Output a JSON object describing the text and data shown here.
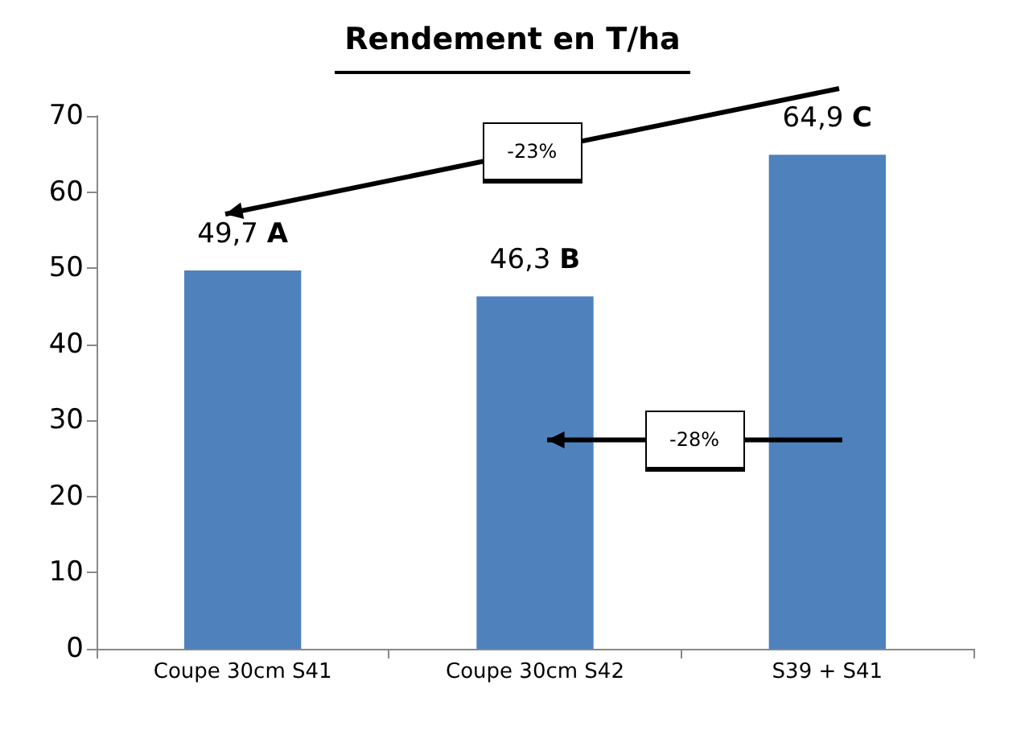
{
  "chart_data": {
    "type": "bar",
    "title": "Rendement en T/ha",
    "categories": [
      "Coupe 30cm S41",
      "Coupe 30cm S42",
      "S39 + S41"
    ],
    "values": [
      49.7,
      46.3,
      64.9
    ],
    "color": "#4f81bd",
    "value_labels": [
      "49,7 A",
      "46,3 B",
      "64,9 C"
    ],
    "ylim": [
      0,
      70
    ],
    "yticks": [
      0,
      10,
      20,
      30,
      40,
      50,
      60,
      70
    ],
    "grid": false,
    "annotations": [
      "-23%",
      "-28%"
    ]
  }
}
